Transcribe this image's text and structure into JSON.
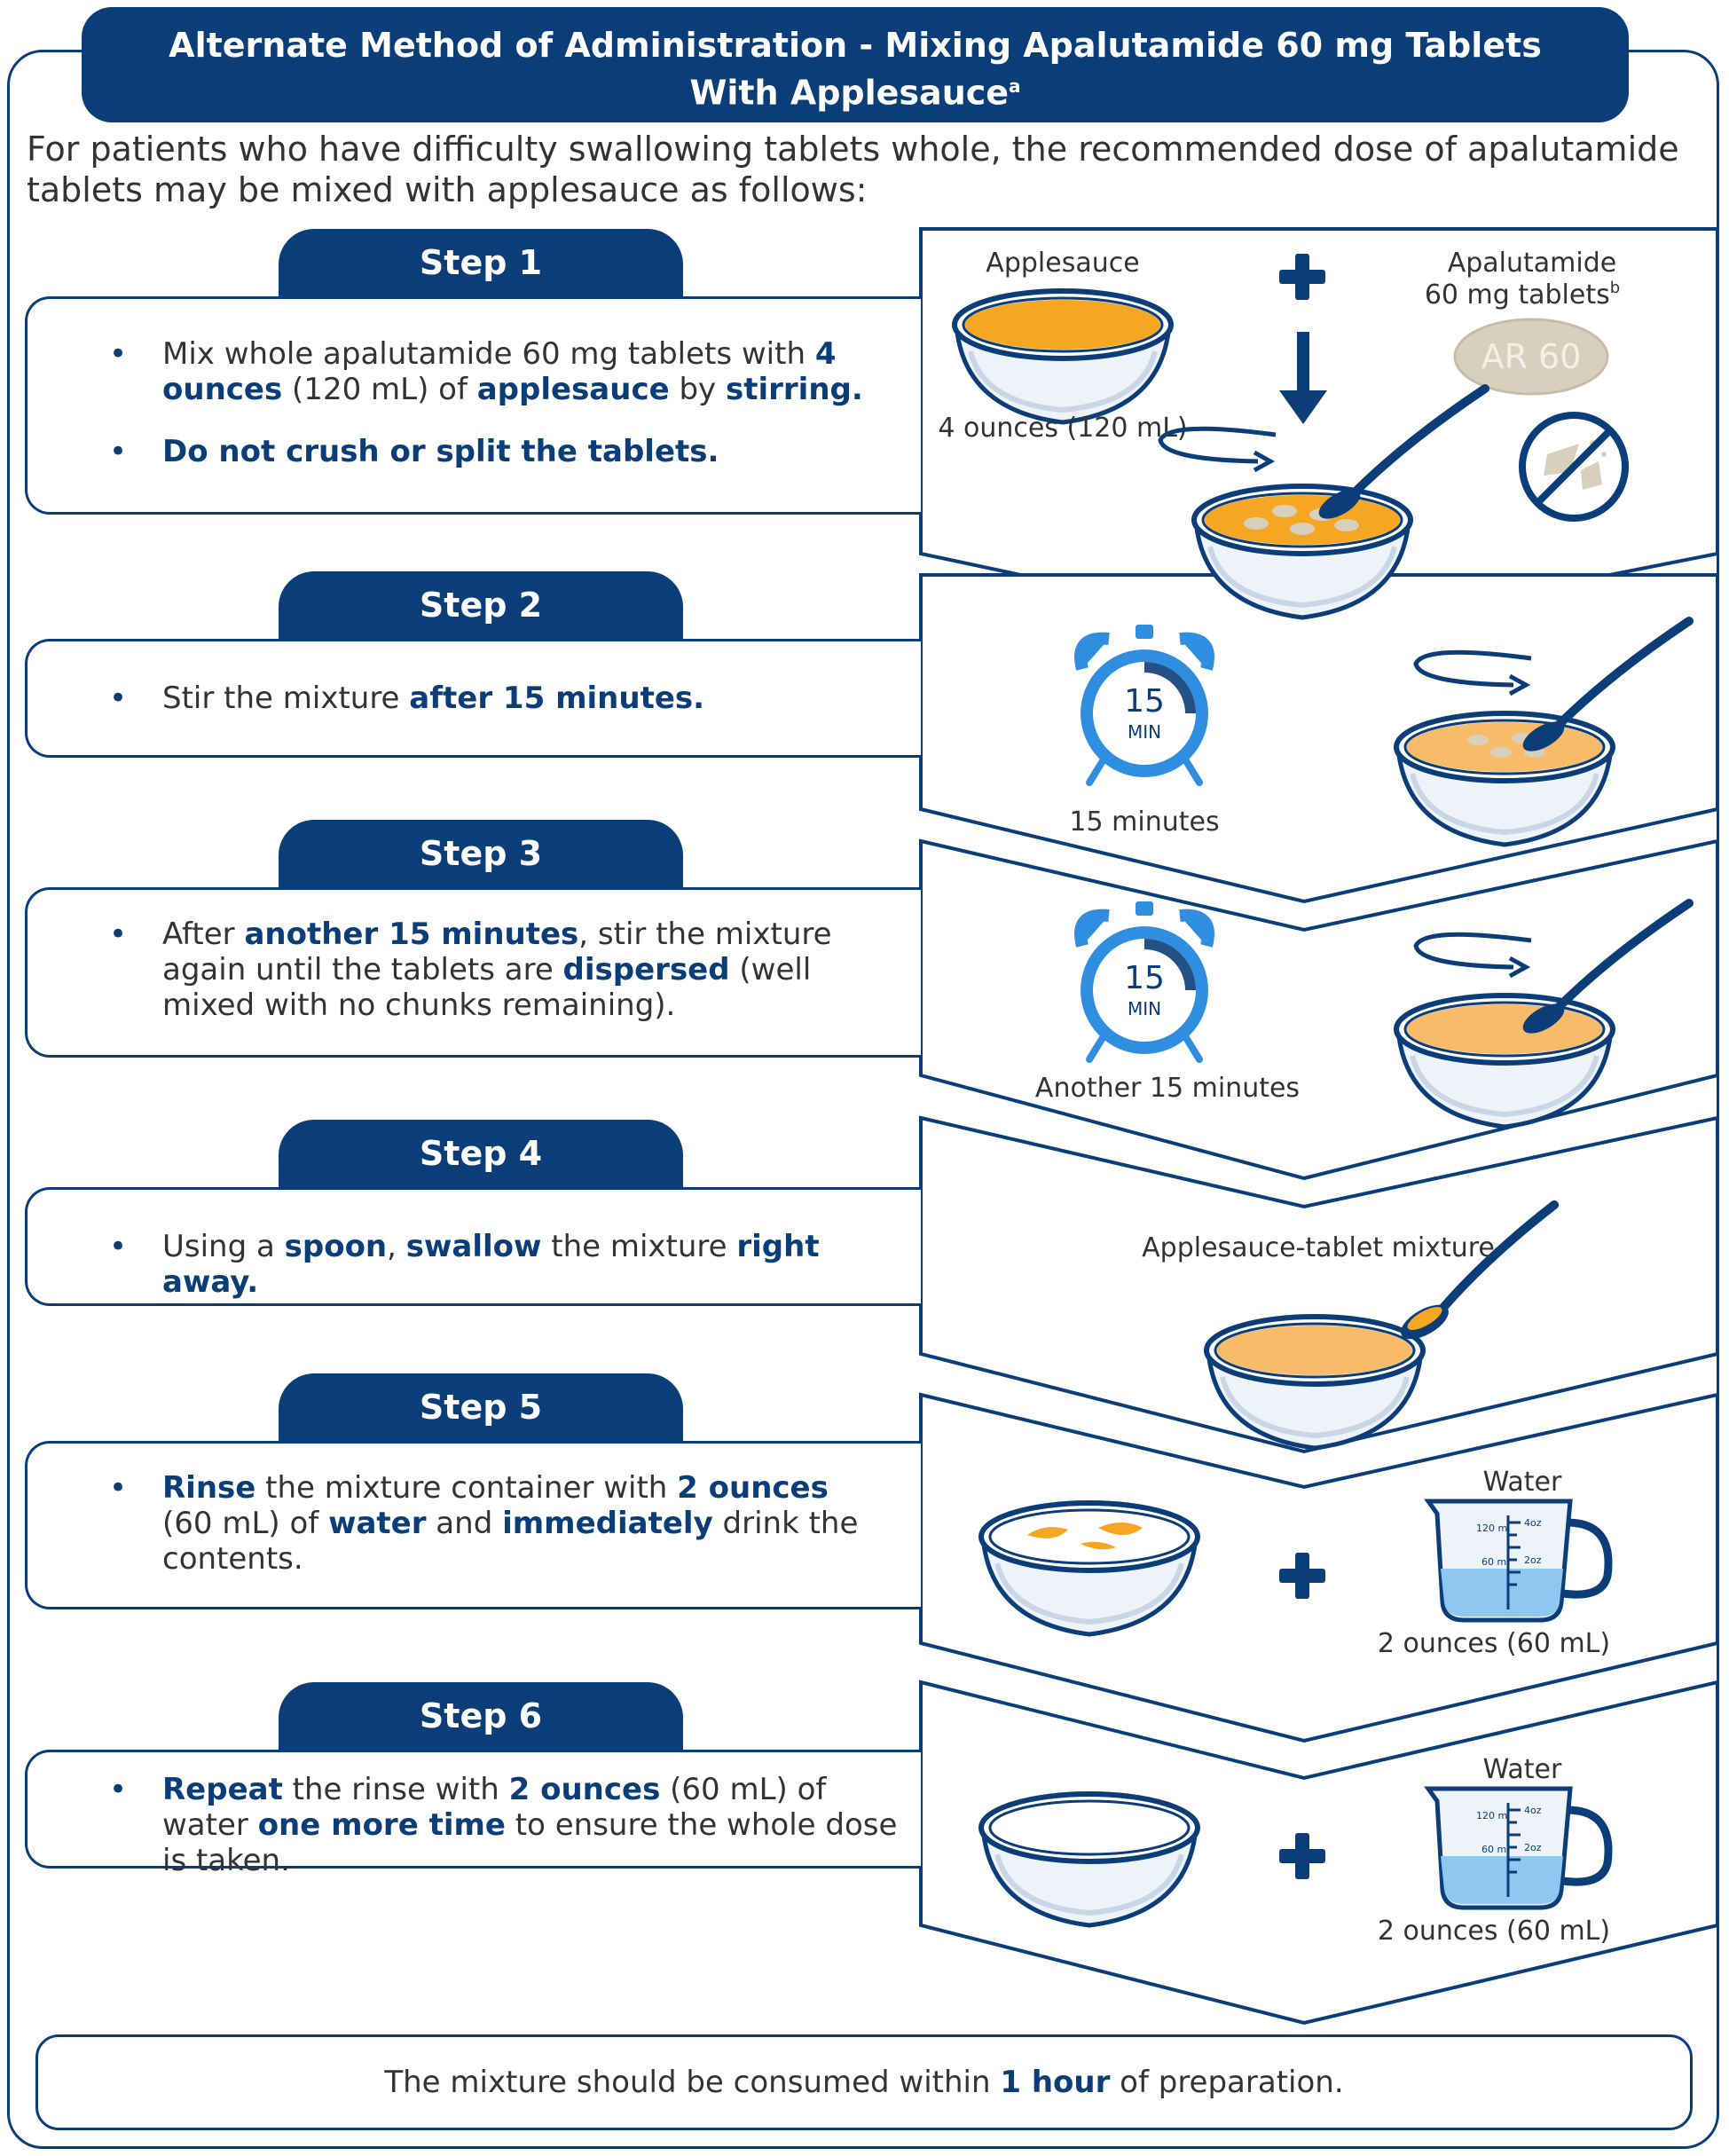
{
  "title": {
    "line1": "Alternate Method of Administration - Mixing Apalutamide 60 mg Tablets",
    "line2": "With Applesauce",
    "sup": "a"
  },
  "intro": "For patients who have difficulty swallowing tablets whole, the recommended dose of apalutamide tablets may be mixed with applesauce as follows:",
  "steps": [
    {
      "label": "Step 1",
      "b1": [
        "Mix whole apalutamide 60 mg tablets with ",
        "4 ounces",
        " (120 mL) of ",
        "applesauce",
        " by ",
        "stirring."
      ],
      "b2": "Do not crush or split the tablets."
    },
    {
      "label": "Step 2",
      "b1": [
        "Stir the mixture ",
        "after 15 minutes."
      ]
    },
    {
      "label": "Step 3",
      "b1": [
        "After ",
        "another 15 minutes",
        ", stir the mixture again until the tablets are ",
        "dispersed",
        " (well mixed with no chunks remaining)."
      ]
    },
    {
      "label": "Step 4",
      "b1": [
        "Using a ",
        "spoon",
        ", ",
        "swallow",
        " the mixture ",
        "right away."
      ]
    },
    {
      "label": "Step 5",
      "b1": [
        "Rinse",
        " the mixture container with ",
        "2 ounces",
        " (60 mL) of ",
        "water",
        " and ",
        "immediately",
        " drink the contents."
      ]
    },
    {
      "label": "Step 6",
      "b1": [
        "Repeat",
        " the rinse with ",
        "2 ounces",
        " (60 mL) of water ",
        "one more time",
        " to ensure the whole dose is taken."
      ]
    }
  ],
  "illustrations": {
    "applesauce_label": "Applesauce",
    "applesauce_amount": "4 ounces (120 mL)",
    "tablet_label_1": "Apalutamide",
    "tablet_label_2": "60 mg tablets",
    "tablet_sup": "b",
    "tablet_text": "AR 60",
    "timer_number": "15",
    "timer_unit": "MIN",
    "timer1_caption": "15 minutes",
    "timer2_caption": "Another 15 minutes",
    "mixture_label": "Applesauce-tablet mixture",
    "water_label": "Water",
    "water_amount": "2 ounces (60 mL)",
    "cup_mark_120": "120 ml",
    "cup_mark_60": "60 ml",
    "cup_mark_4oz": "4oz",
    "cup_mark_2oz": "2oz"
  },
  "footer": [
    "The mixture should be consumed within ",
    "1 hour",
    " of preparation."
  ],
  "colors": {
    "navy": "#0b3d78",
    "applesauce": "#f5a623",
    "water": "#8ec8f0",
    "clock": "#2f8ee0"
  }
}
